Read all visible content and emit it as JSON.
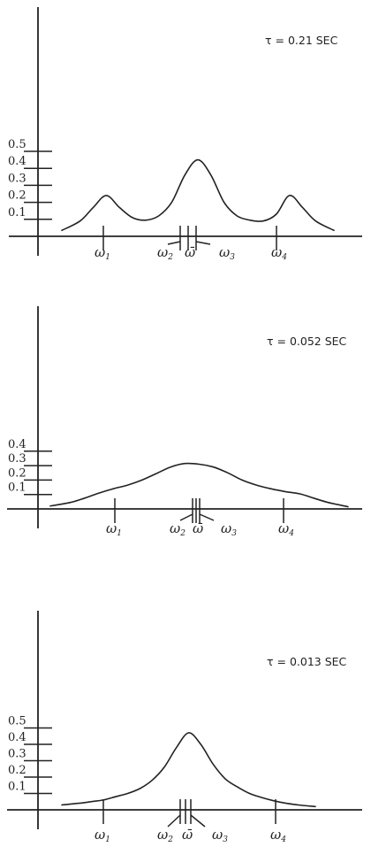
{
  "chart_data": [
    {
      "type": "line",
      "annotation": "τ = 0.21 SEC",
      "y_ticks": [
        "0.1",
        "0.2",
        "0.3",
        "0.4",
        "0.5"
      ],
      "ylim": [
        0,
        0.5
      ],
      "x_marks": [
        {
          "symbol": "ω",
          "sub": "1"
        },
        {
          "symbol": "ω",
          "sub": "2"
        },
        {
          "symbol": "ω̄",
          "sub": ""
        },
        {
          "symbol": "ω",
          "sub": "3"
        },
        {
          "symbol": "ω",
          "sub": "4"
        }
      ],
      "series": [
        {
          "x": [
            -5.2,
            -4.5,
            -4.0,
            -3.5,
            -3.0,
            -2.5,
            -2.0,
            -1.5,
            -1.0,
            -0.5,
            0.0,
            0.5,
            1.0,
            1.5,
            2.0,
            2.5,
            3.0,
            3.5,
            4.0,
            4.5,
            5.2
          ],
          "y": [
            0.035,
            0.09,
            0.17,
            0.24,
            0.17,
            0.11,
            0.095,
            0.12,
            0.2,
            0.36,
            0.45,
            0.36,
            0.2,
            0.12,
            0.095,
            0.09,
            0.13,
            0.24,
            0.17,
            0.09,
            0.035
          ]
        }
      ]
    },
    {
      "type": "line",
      "annotation": "τ = 0.052 SEC",
      "y_ticks": [
        "0.1",
        "0.2",
        "0.3",
        "0.4"
      ],
      "ylim": [
        0,
        0.4
      ],
      "x_marks": [
        {
          "symbol": "ω",
          "sub": "1"
        },
        {
          "symbol": "ω",
          "sub": "2"
        },
        {
          "symbol": "ω̄",
          "sub": ""
        },
        {
          "symbol": "ω",
          "sub": "3"
        },
        {
          "symbol": "ω",
          "sub": "4"
        }
      ],
      "series": [
        {
          "x": [
            -5.2,
            -4.5,
            -4.0,
            -3.5,
            -3.0,
            -2.5,
            -2.0,
            -1.5,
            -1.0,
            -0.5,
            0.0,
            0.5,
            1.0,
            1.5,
            2.0,
            2.5,
            3.0,
            3.5,
            4.0,
            4.5,
            5.2
          ],
          "y": [
            0.02,
            0.045,
            0.075,
            0.11,
            0.14,
            0.165,
            0.2,
            0.245,
            0.29,
            0.315,
            0.31,
            0.29,
            0.25,
            0.2,
            0.165,
            0.14,
            0.12,
            0.105,
            0.075,
            0.045,
            0.015
          ]
        }
      ]
    },
    {
      "type": "line",
      "annotation": "τ = 0.013 SEC",
      "y_ticks": [
        "0.1",
        "0.2",
        "0.3",
        "0.4",
        "0.5"
      ],
      "ylim": [
        0,
        0.5
      ],
      "x_marks": [
        {
          "symbol": "ω",
          "sub": "1"
        },
        {
          "symbol": "ω",
          "sub": "2"
        },
        {
          "symbol": "ω̄",
          "sub": ""
        },
        {
          "symbol": "ω",
          "sub": "3"
        },
        {
          "symbol": "ω",
          "sub": "4"
        }
      ],
      "series": [
        {
          "x": [
            -5.2,
            -4.5,
            -4.0,
            -3.5,
            -3.0,
            -2.5,
            -2.0,
            -1.5,
            -1.0,
            -0.5,
            0.0,
            0.5,
            1.0,
            1.5,
            2.0,
            2.5,
            3.0,
            3.5,
            4.0,
            4.5,
            5.2
          ],
          "y": [
            0.03,
            0.04,
            0.05,
            0.06,
            0.08,
            0.1,
            0.13,
            0.18,
            0.26,
            0.38,
            0.47,
            0.4,
            0.28,
            0.19,
            0.14,
            0.1,
            0.075,
            0.055,
            0.04,
            0.03,
            0.02
          ]
        }
      ]
    }
  ]
}
